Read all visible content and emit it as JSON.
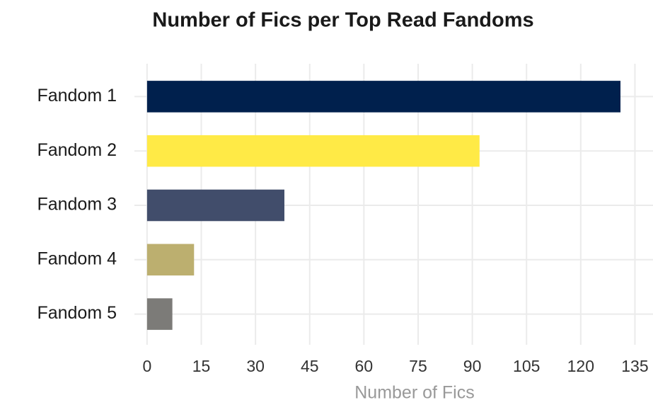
{
  "chart_data": {
    "type": "barh",
    "title": "Number of Fics per Top Read Fandoms",
    "categories": [
      "Fandom 1",
      "Fandom 2",
      "Fandom 3",
      "Fandom 4",
      "Fandom 5"
    ],
    "values": [
      131,
      92,
      38,
      13,
      7
    ],
    "colors": [
      "#00204d",
      "#ffea46",
      "#414d6b",
      "#bcaf6f",
      "#7c7b78"
    ],
    "xlabel": "Number of Fics",
    "xlim": [
      -3.5,
      140
    ],
    "xticks": [
      0,
      15,
      30,
      45,
      60,
      75,
      90,
      105,
      120,
      135
    ],
    "grid": true
  }
}
